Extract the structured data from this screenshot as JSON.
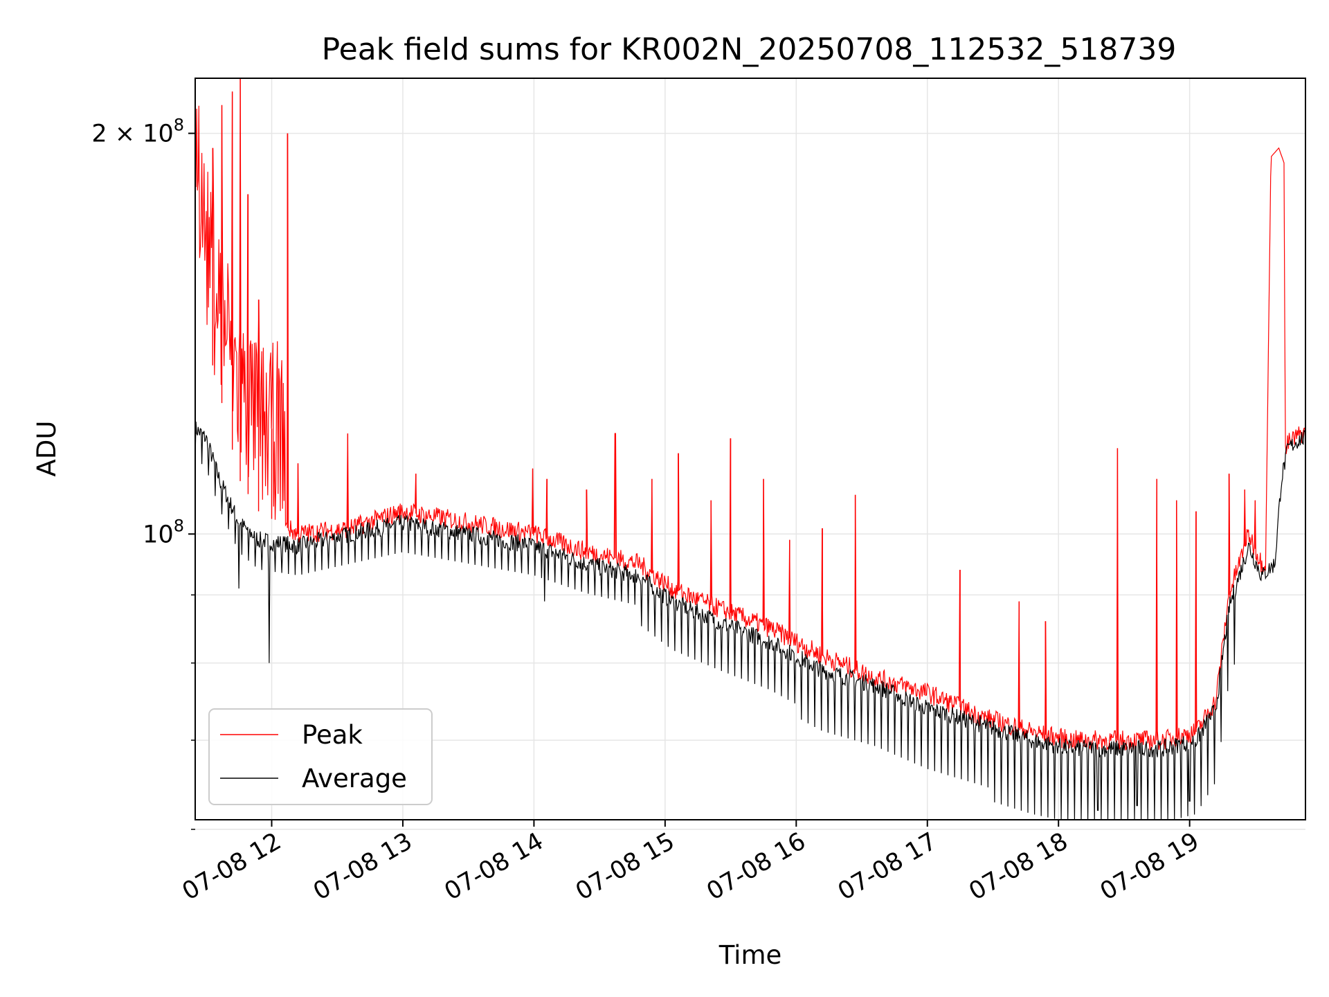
{
  "chart_data": {
    "type": "line",
    "title": "Peak field sums for KR002N_20250708_112532_518739",
    "xlabel": "Time",
    "ylabel": "ADU",
    "y_scale": "log",
    "grid": true,
    "legend_placement": "lower-left",
    "x_range": [
      "07-08 11:25",
      "07-08 19:53"
    ],
    "y_range": [
      61000000,
      220000000
    ],
    "x_tick_labels": [
      "07-08 12",
      "07-08 13",
      "07-08 14",
      "07-08 15",
      "07-08 16",
      "07-08 17",
      "07-08 18",
      "07-08 19"
    ],
    "x_tick_hours": [
      12,
      13,
      14,
      15,
      16,
      17,
      18,
      19
    ],
    "y_tick_labels": [
      {
        "value": 100000000,
        "base": "10",
        "exp": "8",
        "prefix": ""
      },
      {
        "value": 200000000,
        "base": "10",
        "exp": "8",
        "prefix": "2 × "
      }
    ],
    "y_minor_ticks": [
      60000000,
      70000000,
      80000000,
      90000000
    ],
    "series": [
      {
        "name": "Peak",
        "color": "#ff0000",
        "baseline": [
          [
            11.42,
            175000000
          ],
          [
            11.5,
            140000000
          ],
          [
            11.6,
            128000000
          ],
          [
            11.75,
            110000000
          ],
          [
            11.9,
            104000000
          ],
          [
            12.2,
            100000000
          ],
          [
            12.6,
            101000000
          ],
          [
            13.0,
            104000000
          ],
          [
            13.5,
            102000000
          ],
          [
            14.0,
            100000000
          ],
          [
            14.4,
            97000000
          ],
          [
            14.8,
            95000000
          ],
          [
            15.05,
            91000000
          ],
          [
            15.4,
            88000000
          ],
          [
            15.8,
            85000000
          ],
          [
            16.2,
            81000000
          ],
          [
            16.6,
            78000000
          ],
          [
            17.0,
            76000000
          ],
          [
            17.4,
            73000000
          ],
          [
            17.8,
            71000000
          ],
          [
            18.1,
            70000000
          ],
          [
            18.5,
            70000000
          ],
          [
            18.8,
            70000000
          ],
          [
            19.05,
            71000000
          ],
          [
            19.2,
            75000000
          ],
          [
            19.3,
            90000000
          ],
          [
            19.45,
            100000000
          ],
          [
            19.55,
            95000000
          ],
          [
            19.65,
            96000000
          ],
          [
            19.7,
            112000000
          ],
          [
            19.75,
            117000000
          ],
          [
            19.85,
            119000000
          ]
        ],
        "spikes": [
          [
            11.55,
            195000000
          ],
          [
            11.62,
            210000000
          ],
          [
            11.7,
            215000000
          ],
          [
            11.76,
            220000000
          ],
          [
            11.82,
            180000000
          ],
          [
            11.9,
            150000000
          ],
          [
            12.0,
            120000000
          ],
          [
            12.12,
            200000000
          ],
          [
            12.2,
            113000000
          ],
          [
            12.58,
            119000000
          ],
          [
            13.1,
            111000000
          ],
          [
            13.99,
            112000000
          ],
          [
            14.1,
            110000000
          ],
          [
            14.4,
            108000000
          ],
          [
            14.62,
            119000000
          ],
          [
            14.9,
            110000000
          ],
          [
            15.1,
            115000000
          ],
          [
            15.35,
            106000000
          ],
          [
            15.5,
            118000000
          ],
          [
            15.75,
            110000000
          ],
          [
            15.95,
            99000000
          ],
          [
            16.2,
            101000000
          ],
          [
            16.45,
            107000000
          ],
          [
            17.25,
            94000000
          ],
          [
            17.7,
            89000000
          ],
          [
            17.9,
            86000000
          ],
          [
            18.45,
            116000000
          ],
          [
            18.75,
            110000000
          ],
          [
            18.9,
            106000000
          ],
          [
            19.05,
            104000000
          ],
          [
            19.3,
            111000000
          ],
          [
            19.42,
            108000000
          ],
          [
            19.5,
            106000000
          ]
        ],
        "plateau": [
          [
            19.58,
            96000000
          ],
          [
            19.62,
            192000000
          ],
          [
            19.68,
            195000000
          ],
          [
            19.72,
            190000000
          ],
          [
            19.73,
            110000000
          ]
        ]
      },
      {
        "name": "Average",
        "color": "#000000",
        "baseline": [
          [
            11.42,
            120000000
          ],
          [
            11.5,
            118000000
          ],
          [
            11.6,
            110000000
          ],
          [
            11.75,
            102000000
          ],
          [
            11.9,
            99000000
          ],
          [
            12.2,
            98000000
          ],
          [
            12.6,
            100000000
          ],
          [
            13.0,
            102000000
          ],
          [
            13.5,
            100000000
          ],
          [
            14.0,
            98000000
          ],
          [
            14.4,
            95000000
          ],
          [
            14.8,
            93000000
          ],
          [
            15.05,
            89000000
          ],
          [
            15.4,
            86000000
          ],
          [
            15.8,
            83000000
          ],
          [
            16.2,
            79000000
          ],
          [
            16.6,
            77000000
          ],
          [
            17.0,
            74000000
          ],
          [
            17.4,
            72000000
          ],
          [
            17.8,
            70000000
          ],
          [
            18.1,
            69000000
          ],
          [
            18.5,
            69000000
          ],
          [
            18.8,
            69000000
          ],
          [
            19.05,
            70000000
          ],
          [
            19.2,
            74000000
          ],
          [
            19.3,
            88000000
          ],
          [
            19.45,
            98000000
          ],
          [
            19.55,
            93000000
          ],
          [
            19.65,
            95000000
          ],
          [
            19.7,
            110000000
          ],
          [
            19.75,
            116000000
          ],
          [
            19.85,
            118000000
          ]
        ],
        "dips": [
          [
            11.98,
            80000000
          ],
          [
            11.75,
            91000000
          ],
          [
            14.08,
            89000000
          ],
          [
            18.3,
            62000000
          ],
          [
            18.6,
            62500000
          ],
          [
            19.0,
            63000000
          ]
        ]
      }
    ]
  }
}
